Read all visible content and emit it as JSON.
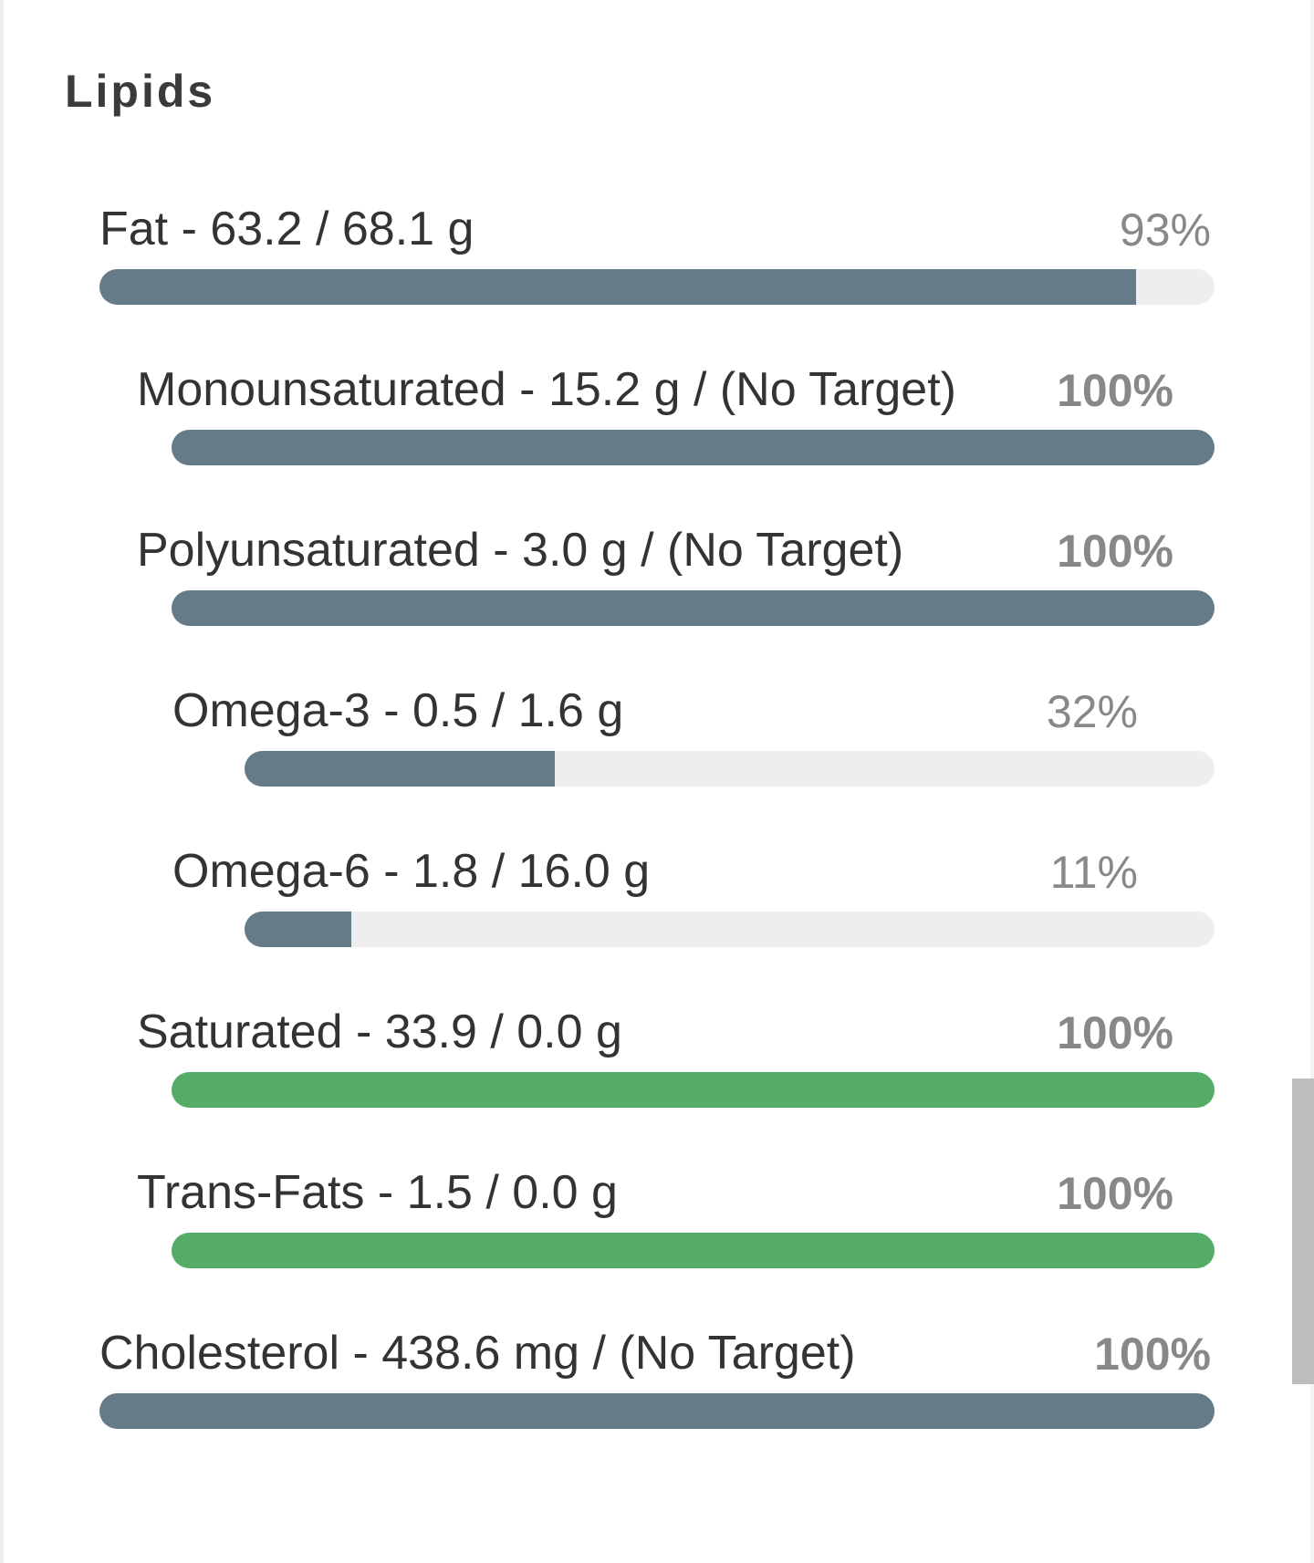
{
  "header": {
    "title": "Lipids"
  },
  "items": [
    {
      "label": "Fat - 63.2 / 68.1 g",
      "percent": 93,
      "percent_label": "93%",
      "color": "#657b87",
      "children": [
        {
          "label": "Monounsaturated - 15.2 g / (No Target)",
          "percent": 100,
          "percent_label": "100%",
          "color": "#657b87"
        },
        {
          "label": "Polyunsaturated - 3.0 g / (No Target)",
          "percent": 100,
          "percent_label": "100%",
          "color": "#657b87",
          "children": [
            {
              "label": "Omega-3 - 0.5 / 1.6 g",
              "percent": 32,
              "percent_label": "32%",
              "color": "#657b87"
            },
            {
              "label": "Omega-6 - 1.8 / 16.0 g",
              "percent": 11,
              "percent_label": "11%",
              "color": "#657b87"
            }
          ]
        },
        {
          "label": "Saturated - 33.9 / 0.0 g",
          "percent": 100,
          "percent_label": "100%",
          "color": "#55ac66"
        },
        {
          "label": "Trans-Fats - 1.5 / 0.0 g",
          "percent": 100,
          "percent_label": "100%",
          "color": "#55ac66"
        }
      ]
    },
    {
      "label": "Cholesterol - 438.6 mg / (No Target)",
      "percent": 100,
      "percent_label": "100%",
      "color": "#657b87"
    }
  ]
}
